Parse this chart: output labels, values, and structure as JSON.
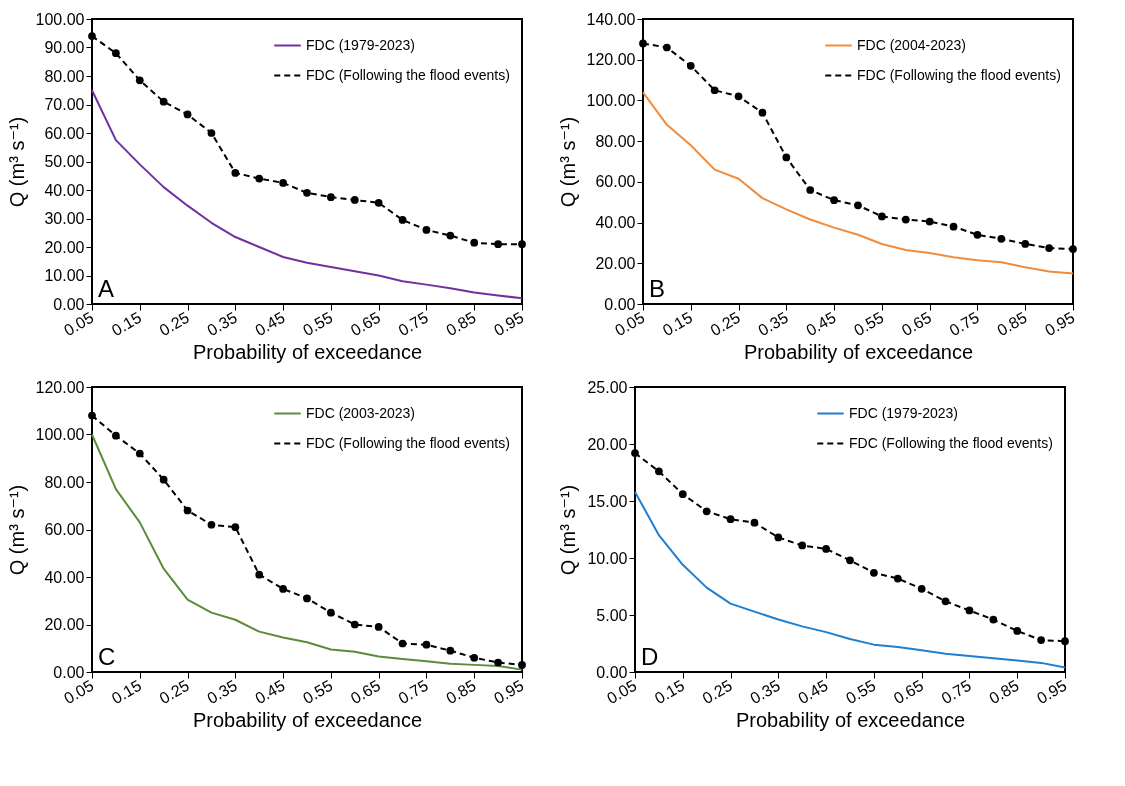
{
  "chart_data": [
    {
      "type": "line",
      "xlabel": "Probability of exceedance",
      "ylabel": "Q (m³ s⁻¹)",
      "annotations": [
        "A"
      ],
      "legend": "top right",
      "x": [
        0.05,
        0.1,
        0.15,
        0.2,
        0.25,
        0.3,
        0.35,
        0.4,
        0.45,
        0.5,
        0.55,
        0.6,
        0.65,
        0.7,
        0.75,
        0.8,
        0.85,
        0.9,
        0.95
      ],
      "xlim": [
        0.05,
        0.95
      ],
      "xticks": [
        0.05,
        0.15,
        0.25,
        0.35,
        0.45,
        0.55,
        0.65,
        0.75,
        0.85,
        0.95
      ],
      "ylim": [
        0,
        100
      ],
      "yticks": [
        {
          "value": 0,
          "label": "0.00"
        },
        {
          "value": 10,
          "label": "10.00"
        },
        {
          "value": 20,
          "label": "20.00"
        },
        {
          "value": 30,
          "label": "30.00"
        },
        {
          "value": 40,
          "label": "40.00"
        },
        {
          "value": 50,
          "label": "50.00"
        },
        {
          "value": 60,
          "label": "60.00"
        },
        {
          "value": 70,
          "label": "70.00"
        },
        {
          "value": 80,
          "label": "80.00"
        },
        {
          "value": 90,
          "label": "90.00"
        },
        {
          "value": 100,
          "label": "100.00"
        }
      ],
      "series": [
        {
          "name": "FDC (1979-2023)",
          "color": "#7030a0",
          "line_style": "solid",
          "marker": "none",
          "values": [
            75,
            57.5,
            49,
            41,
            34.5,
            28.5,
            23.5,
            20,
            16.5,
            14.5,
            13,
            11.5,
            10,
            8,
            6.8,
            5.5,
            4,
            3,
            2
          ]
        },
        {
          "name": "FDC (Following the flood events)",
          "color": "#000000",
          "line_style": "dashed",
          "marker": "circle",
          "values": [
            94,
            88,
            78.5,
            71,
            66.5,
            60,
            46,
            44,
            42.5,
            39,
            37.5,
            36.5,
            35.5,
            29.5,
            26,
            24,
            21.5,
            21,
            21
          ]
        }
      ]
    },
    {
      "type": "line",
      "xlabel": "Probability of exceedance",
      "ylabel": "Q (m³ s⁻¹)",
      "annotations": [
        "B"
      ],
      "legend": "top right",
      "x": [
        0.05,
        0.1,
        0.15,
        0.2,
        0.25,
        0.3,
        0.35,
        0.4,
        0.45,
        0.5,
        0.55,
        0.6,
        0.65,
        0.7,
        0.75,
        0.8,
        0.85,
        0.9,
        0.95
      ],
      "xlim": [
        0.05,
        0.95
      ],
      "xticks": [
        0.05,
        0.15,
        0.25,
        0.35,
        0.45,
        0.55,
        0.65,
        0.75,
        0.85,
        0.95
      ],
      "ylim": [
        0,
        140
      ],
      "yticks": [
        {
          "value": 0,
          "label": "0.00"
        },
        {
          "value": 20,
          "label": "20.00"
        },
        {
          "value": 40,
          "label": "40.00"
        },
        {
          "value": 60,
          "label": "60.00"
        },
        {
          "value": 80,
          "label": "80.00"
        },
        {
          "value": 100,
          "label": "100.00"
        },
        {
          "value": 120,
          "label": "120.00"
        },
        {
          "value": 140,
          "label": "140.00"
        }
      ],
      "series": [
        {
          "name": "FDC (2004-2023)",
          "color": "#f08c3c",
          "line_style": "solid",
          "marker": "none",
          "values": [
            104,
            88,
            78,
            66,
            61.5,
            52,
            46.5,
            41.5,
            37.5,
            34,
            29.5,
            26.5,
            25,
            23,
            21.5,
            20.5,
            18,
            16,
            15
          ]
        },
        {
          "name": "FDC (Following the flood events)",
          "color": "#000000",
          "line_style": "dashed",
          "marker": "circle",
          "values": [
            128,
            126,
            117,
            105,
            102,
            94,
            72,
            56,
            51,
            48.5,
            43,
            41.5,
            40.5,
            38,
            34,
            32,
            29.5,
            27.5,
            27
          ]
        }
      ]
    },
    {
      "type": "line",
      "xlabel": "Probability of exceedance",
      "ylabel": "Q (m³ s⁻¹)",
      "annotations": [
        "C"
      ],
      "legend": "top right",
      "x": [
        0.05,
        0.1,
        0.15,
        0.2,
        0.25,
        0.3,
        0.35,
        0.4,
        0.45,
        0.5,
        0.55,
        0.6,
        0.65,
        0.7,
        0.75,
        0.8,
        0.85,
        0.9,
        0.95
      ],
      "xlim": [
        0.05,
        0.95
      ],
      "xticks": [
        0.05,
        0.15,
        0.25,
        0.35,
        0.45,
        0.55,
        0.65,
        0.75,
        0.85,
        0.95
      ],
      "ylim": [
        0,
        120
      ],
      "yticks": [
        {
          "value": 0,
          "label": "0.00"
        },
        {
          "value": 20,
          "label": "20.00"
        },
        {
          "value": 40,
          "label": "40.00"
        },
        {
          "value": 60,
          "label": "60.00"
        },
        {
          "value": 80,
          "label": "80.00"
        },
        {
          "value": 100,
          "label": "100.00"
        },
        {
          "value": 120,
          "label": "120.00"
        }
      ],
      "series": [
        {
          "name": "FDC (2003-2023)",
          "color": "#5b8c3a",
          "line_style": "solid",
          "marker": "none",
          "values": [
            100,
            77,
            63,
            43.5,
            30.5,
            25,
            22,
            17,
            14.5,
            12.5,
            9.5,
            8.5,
            6.5,
            5.5,
            4.5,
            3.5,
            3,
            2.5,
            1
          ]
        },
        {
          "name": "FDC (Following the flood events)",
          "color": "#000000",
          "line_style": "dashed",
          "marker": "circle",
          "values": [
            108,
            99.5,
            92,
            81,
            68,
            62,
            61,
            41,
            35,
            31,
            25,
            20,
            19,
            12,
            11.5,
            9,
            6,
            4,
            3
          ]
        }
      ]
    },
    {
      "type": "line",
      "xlabel": "Probability of exceedance",
      "ylabel": "Q (m³ s⁻¹)",
      "annotations": [
        "D"
      ],
      "legend": "top right",
      "x": [
        0.05,
        0.1,
        0.15,
        0.2,
        0.25,
        0.3,
        0.35,
        0.4,
        0.45,
        0.5,
        0.55,
        0.6,
        0.65,
        0.7,
        0.75,
        0.8,
        0.85,
        0.9,
        0.95
      ],
      "xlim": [
        0.05,
        0.95
      ],
      "xticks": [
        0.05,
        0.15,
        0.25,
        0.35,
        0.45,
        0.55,
        0.65,
        0.75,
        0.85,
        0.95
      ],
      "ylim": [
        0,
        25
      ],
      "yticks": [
        {
          "value": 0,
          "label": "0.00"
        },
        {
          "value": 5,
          "label": "5.00"
        },
        {
          "value": 10,
          "label": "10.00"
        },
        {
          "value": 15,
          "label": "15.00"
        },
        {
          "value": 20,
          "label": "20.00"
        },
        {
          "value": 25,
          "label": "25.00"
        }
      ],
      "series": [
        {
          "name": "FDC (1979-2023)",
          "color": "#1f7fd0",
          "line_style": "solid",
          "marker": "none",
          "values": [
            15.8,
            12,
            9.4,
            7.4,
            6.0,
            5.3,
            4.6,
            4.0,
            3.5,
            2.9,
            2.4,
            2.2,
            1.9,
            1.6,
            1.4,
            1.2,
            1.0,
            0.8,
            0.4
          ]
        },
        {
          "name": "FDC (Following the flood events)",
          "color": "#000000",
          "line_style": "dashed",
          "marker": "circle",
          "values": [
            19.2,
            17.6,
            15.6,
            14.1,
            13.4,
            13.1,
            11.8,
            11.1,
            10.8,
            9.8,
            8.7,
            8.2,
            7.3,
            6.2,
            5.4,
            4.6,
            3.6,
            2.8,
            2.7
          ]
        }
      ]
    }
  ]
}
